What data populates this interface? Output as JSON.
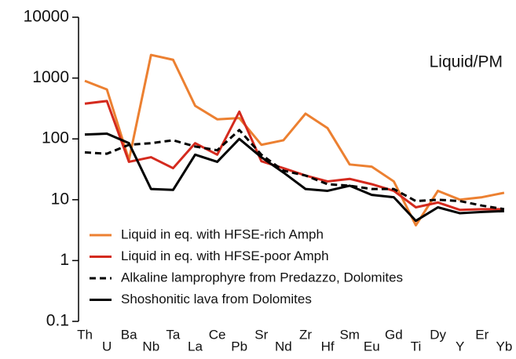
{
  "chart_data": {
    "type": "line",
    "annotation": "Liquid/PM",
    "categories": [
      "Th",
      "U",
      "Ba",
      "Nb",
      "Ta",
      "La",
      "Ce",
      "Pb",
      "Sr",
      "Nd",
      "Zr",
      "Hf",
      "Sm",
      "Eu",
      "Gd",
      "Ti",
      "Dy",
      "Y",
      "Er",
      "Yb"
    ],
    "series": [
      {
        "name": "Liquid in eq. with HFSE-rich Amph",
        "color": "#ec8031",
        "linestyle": "solid",
        "values": [
          900,
          650,
          45,
          2400,
          2000,
          350,
          210,
          220,
          80,
          95,
          260,
          150,
          38,
          35,
          20,
          3.8,
          14,
          10,
          11,
          13
        ]
      },
      {
        "name": "Liquid in eq. with HFSE-poor Amph",
        "color": "#d42a1e",
        "linestyle": "solid",
        "values": [
          380,
          420,
          42,
          50,
          33,
          85,
          55,
          280,
          43,
          33,
          25,
          20,
          22,
          18,
          14,
          7.5,
          9,
          6.8,
          7,
          7
        ]
      },
      {
        "name": "Alkaline lamprophyre from Predazzo, Dolomites",
        "color": "#000000",
        "linestyle": "dashed",
        "values": [
          60,
          57,
          80,
          85,
          95,
          75,
          65,
          140,
          55,
          30,
          25,
          18,
          17,
          15,
          15,
          9.5,
          10,
          9.5,
          8,
          7
        ]
      },
      {
        "name": "Shoshonitic lava from Dolomites",
        "color": "#000000",
        "linestyle": "solid",
        "values": [
          118,
          122,
          85,
          15,
          14.5,
          55,
          42,
          100,
          50,
          28,
          15,
          14,
          17,
          12,
          11,
          4.5,
          7.5,
          6,
          6.3,
          6.5
        ]
      }
    ],
    "ylim": [
      0.1,
      10000
    ],
    "yticks": [
      0.1,
      1,
      10,
      100,
      1000,
      10000
    ],
    "log_y": true,
    "legend": "lower left"
  }
}
